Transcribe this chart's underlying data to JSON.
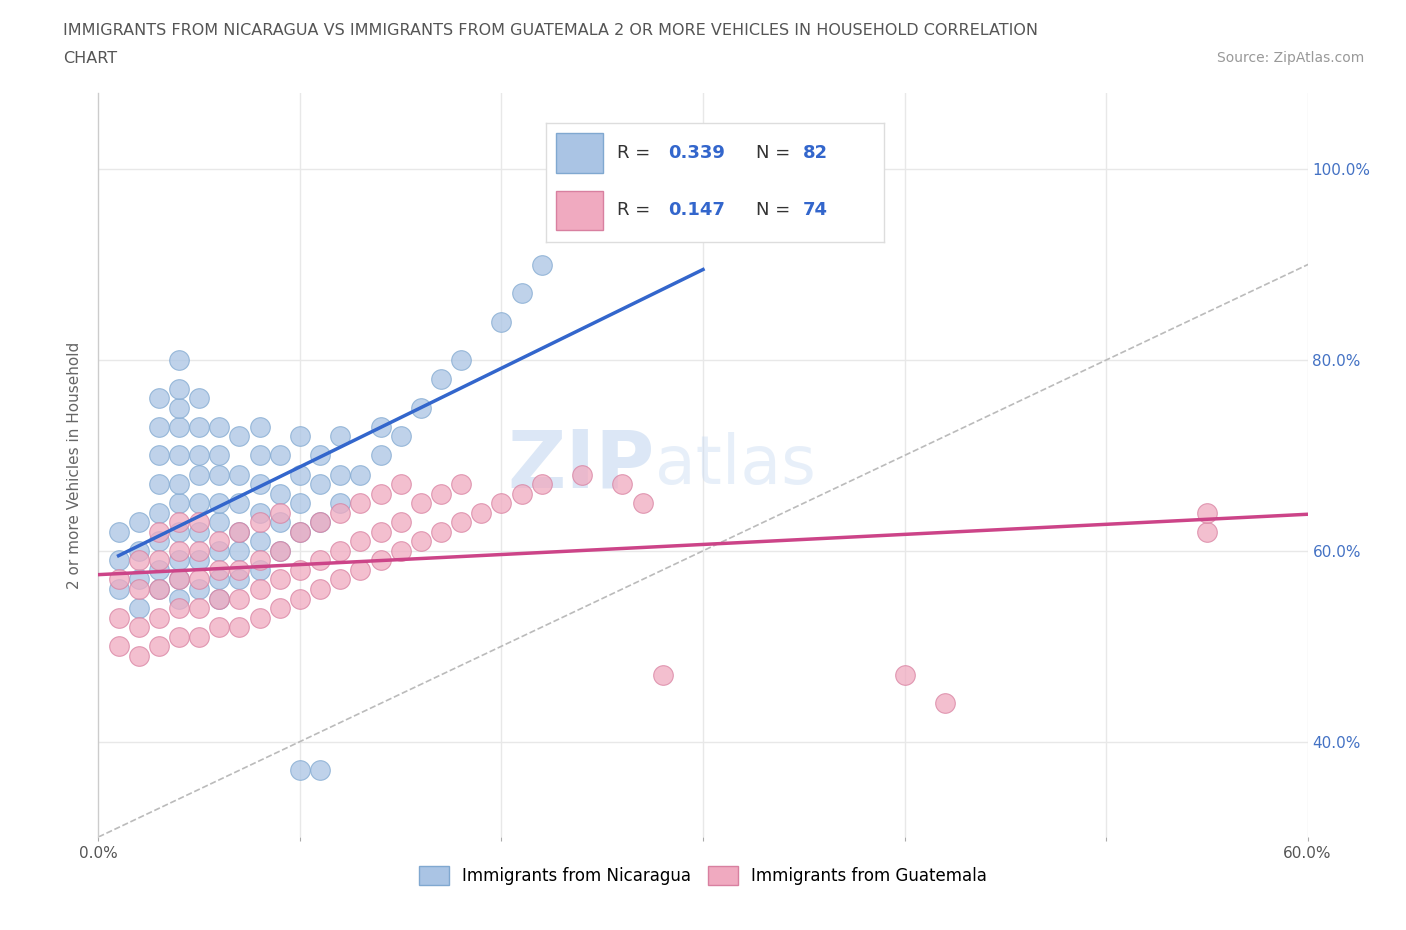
{
  "title_line1": "IMMIGRANTS FROM NICARAGUA VS IMMIGRANTS FROM GUATEMALA 2 OR MORE VEHICLES IN HOUSEHOLD CORRELATION",
  "title_line2": "CHART",
  "source": "Source: ZipAtlas.com",
  "ylabel": "2 or more Vehicles in Household",
  "xlim": [
    0.0,
    0.6
  ],
  "ylim": [
    0.3,
    1.08
  ],
  "xticks": [
    0.0,
    0.1,
    0.2,
    0.3,
    0.4,
    0.5,
    0.6
  ],
  "xticklabels": [
    "0.0%",
    "",
    "",
    "",
    "",
    "",
    "60.0%"
  ],
  "yticks": [
    0.4,
    0.6,
    0.8,
    1.0
  ],
  "yticklabels": [
    "40.0%",
    "60.0%",
    "80.0%",
    "100.0%"
  ],
  "nicaragua_color": "#aac4e4",
  "nicaragua_edge": "#80a8d0",
  "guatemala_color": "#f0aac0",
  "guatemala_edge": "#d880a0",
  "nicaragua_R": 0.339,
  "nicaragua_N": 82,
  "guatemala_R": 0.147,
  "guatemala_N": 74,
  "trend_blue": "#3366cc",
  "trend_pink": "#cc4488",
  "diag_color": "#bbbbbb",
  "watermark_color": "#c8d8ec",
  "grid_color": "#e8e8e8",
  "background": "#ffffff",
  "nicaragua_x": [
    0.01,
    0.01,
    0.01,
    0.02,
    0.02,
    0.02,
    0.02,
    0.03,
    0.03,
    0.03,
    0.03,
    0.03,
    0.03,
    0.03,
    0.03,
    0.04,
    0.04,
    0.04,
    0.04,
    0.04,
    0.04,
    0.04,
    0.04,
    0.04,
    0.04,
    0.04,
    0.05,
    0.05,
    0.05,
    0.05,
    0.05,
    0.05,
    0.05,
    0.05,
    0.06,
    0.06,
    0.06,
    0.06,
    0.06,
    0.06,
    0.06,
    0.06,
    0.07,
    0.07,
    0.07,
    0.07,
    0.07,
    0.07,
    0.08,
    0.08,
    0.08,
    0.08,
    0.08,
    0.08,
    0.09,
    0.09,
    0.09,
    0.09,
    0.1,
    0.1,
    0.1,
    0.1,
    0.11,
    0.11,
    0.11,
    0.12,
    0.12,
    0.12,
    0.13,
    0.14,
    0.14,
    0.15,
    0.16,
    0.17,
    0.18,
    0.2,
    0.21,
    0.22,
    0.11,
    0.1,
    0.3,
    0.3
  ],
  "nicaragua_y": [
    0.56,
    0.59,
    0.62,
    0.54,
    0.57,
    0.6,
    0.63,
    0.56,
    0.58,
    0.61,
    0.64,
    0.67,
    0.7,
    0.73,
    0.76,
    0.55,
    0.57,
    0.59,
    0.62,
    0.65,
    0.67,
    0.7,
    0.73,
    0.75,
    0.77,
    0.8,
    0.56,
    0.59,
    0.62,
    0.65,
    0.68,
    0.7,
    0.73,
    0.76,
    0.55,
    0.57,
    0.6,
    0.63,
    0.65,
    0.68,
    0.7,
    0.73,
    0.57,
    0.6,
    0.62,
    0.65,
    0.68,
    0.72,
    0.58,
    0.61,
    0.64,
    0.67,
    0.7,
    0.73,
    0.6,
    0.63,
    0.66,
    0.7,
    0.62,
    0.65,
    0.68,
    0.72,
    0.63,
    0.67,
    0.7,
    0.65,
    0.68,
    0.72,
    0.68,
    0.7,
    0.73,
    0.72,
    0.75,
    0.78,
    0.8,
    0.84,
    0.87,
    0.9,
    0.37,
    0.37,
    0.97,
    0.97
  ],
  "guatemala_x": [
    0.01,
    0.01,
    0.01,
    0.02,
    0.02,
    0.02,
    0.02,
    0.03,
    0.03,
    0.03,
    0.03,
    0.03,
    0.04,
    0.04,
    0.04,
    0.04,
    0.04,
    0.05,
    0.05,
    0.05,
    0.05,
    0.05,
    0.06,
    0.06,
    0.06,
    0.06,
    0.07,
    0.07,
    0.07,
    0.07,
    0.08,
    0.08,
    0.08,
    0.08,
    0.09,
    0.09,
    0.09,
    0.09,
    0.1,
    0.1,
    0.1,
    0.11,
    0.11,
    0.11,
    0.12,
    0.12,
    0.12,
    0.13,
    0.13,
    0.13,
    0.14,
    0.14,
    0.14,
    0.15,
    0.15,
    0.15,
    0.16,
    0.16,
    0.17,
    0.17,
    0.18,
    0.18,
    0.19,
    0.2,
    0.21,
    0.22,
    0.24,
    0.26,
    0.27,
    0.28,
    0.4,
    0.42,
    0.55,
    0.55
  ],
  "guatemala_y": [
    0.5,
    0.53,
    0.57,
    0.49,
    0.52,
    0.56,
    0.59,
    0.5,
    0.53,
    0.56,
    0.59,
    0.62,
    0.51,
    0.54,
    0.57,
    0.6,
    0.63,
    0.51,
    0.54,
    0.57,
    0.6,
    0.63,
    0.52,
    0.55,
    0.58,
    0.61,
    0.52,
    0.55,
    0.58,
    0.62,
    0.53,
    0.56,
    0.59,
    0.63,
    0.54,
    0.57,
    0.6,
    0.64,
    0.55,
    0.58,
    0.62,
    0.56,
    0.59,
    0.63,
    0.57,
    0.6,
    0.64,
    0.58,
    0.61,
    0.65,
    0.59,
    0.62,
    0.66,
    0.6,
    0.63,
    0.67,
    0.61,
    0.65,
    0.62,
    0.66,
    0.63,
    0.67,
    0.64,
    0.65,
    0.66,
    0.67,
    0.68,
    0.67,
    0.65,
    0.47,
    0.47,
    0.44,
    0.62,
    0.64
  ]
}
